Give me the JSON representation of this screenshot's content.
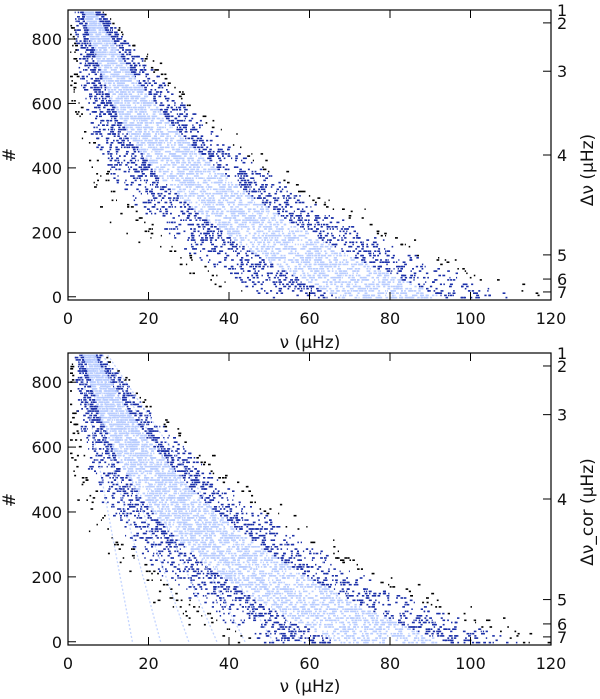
{
  "chart_data": [
    {
      "type": "scatter",
      "panel": "top",
      "xlabel": "ν (μHz)",
      "ylabel": "#",
      "y2label": "Δν (μHz)",
      "xlim": [
        0,
        120
      ],
      "ylim": [
        -10,
        890
      ],
      "xticks": [
        0,
        20,
        40,
        60,
        80,
        100,
        120
      ],
      "yticks": [
        0,
        200,
        400,
        600,
        800
      ],
      "right_ticks": [
        {
          "label": "1",
          "row": 890
        },
        {
          "label": "2",
          "row": 850
        },
        {
          "label": "3",
          "row": 700
        },
        {
          "label": "4",
          "row": 440
        },
        {
          "label": "5",
          "row": 130
        },
        {
          "label": "6",
          "row": 55
        },
        {
          "label": "7",
          "row": 15
        }
      ],
      "colors": {
        "points": "#1a2fa8",
        "highlight": "#b8ccff",
        "background_points": "#000000"
      },
      "mode_ridges": false
    },
    {
      "type": "scatter",
      "panel": "bottom",
      "xlabel": "ν (μHz)",
      "ylabel": "#",
      "y2label": "Δν_cor (μHz)",
      "xlim": [
        0,
        120
      ],
      "ylim": [
        -10,
        890
      ],
      "xticks": [
        0,
        20,
        40,
        60,
        80,
        100,
        120
      ],
      "yticks": [
        0,
        200,
        400,
        600,
        800
      ],
      "right_ticks": [
        {
          "label": "1",
          "row": 890
        },
        {
          "label": "2",
          "row": 850
        },
        {
          "label": "3",
          "row": 700
        },
        {
          "label": "4",
          "row": 440
        },
        {
          "label": "5",
          "row": 130
        },
        {
          "label": "6",
          "row": 55
        },
        {
          "label": "7",
          "row": 15
        }
      ],
      "colors": {
        "points": "#1a2fa8",
        "highlight": "#b8ccff",
        "background_points": "#000000"
      },
      "mode_ridges": true
    }
  ]
}
